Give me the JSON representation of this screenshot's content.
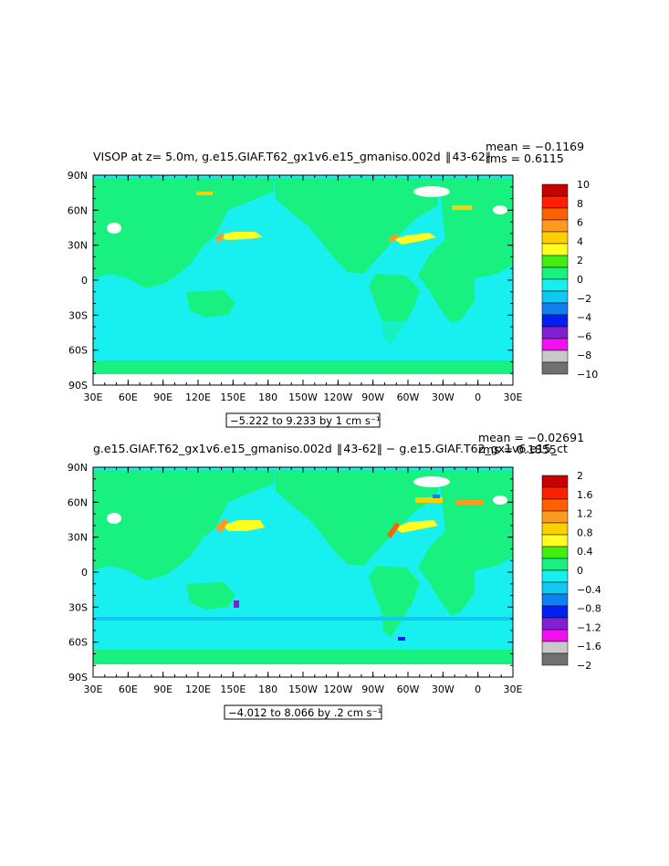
{
  "panels": [
    {
      "title": "VISOP at z=    5.0m, g.e15.GIAF.T62_gx1v6.e15_gmaniso.002d  ‖ 43-62‖",
      "mean_label": "mean = −0.1169",
      "rms_label": "rms = 0.6115",
      "range_label": "−5.222 to 9.233 by 1 cm s⁻¹",
      "colorbar": {
        "labels": [
          "10",
          "8",
          "6",
          "4",
          "2",
          "0",
          "−2",
          "−4",
          "−6",
          "−8",
          "−10"
        ],
        "colors": [
          "#c80000",
          "#ff2000",
          "#ff6000",
          "#ff9a20",
          "#ffd000",
          "#ffff20",
          "#40ee10",
          "#18f080",
          "#18f0f0",
          "#10c8f0",
          "#1080f0",
          "#0020f0",
          "#8020d0",
          "#f010f0",
          "#c8c8c8",
          "#707070"
        ]
      }
    },
    {
      "title": "g.e15.GIAF.T62_gx1v6.e15_gmaniso.002d  ‖ 43-62‖ − g.e15.GIAF.T62_gx1v6.e15_ct",
      "mean_label": "mean = −0.02691",
      "rms_label": "rms = 0.1855",
      "range_label": "−4.012 to 8.066 by .2 cm s⁻¹",
      "colorbar": {
        "labels": [
          "2",
          "1.6",
          "1.2",
          "0.8",
          "0.4",
          "0",
          "−0.4",
          "−0.8",
          "−1.2",
          "−1.6",
          "−2"
        ],
        "colors": [
          "#c80000",
          "#ff2000",
          "#ff6000",
          "#ff9a20",
          "#ffd000",
          "#ffff20",
          "#40ee10",
          "#18f080",
          "#18f0f0",
          "#10c8f0",
          "#1080f0",
          "#0020f0",
          "#8020d0",
          "#f010f0",
          "#c8c8c8",
          "#707070"
        ]
      }
    }
  ],
  "axes": {
    "lat_labels": [
      "90N",
      "60N",
      "30N",
      "0",
      "30S",
      "60S",
      "90S"
    ],
    "lon_labels": [
      "30E",
      "60E",
      "90E",
      "120E",
      "150E",
      "180",
      "150W",
      "120W",
      "90W",
      "60W",
      "30W",
      "0",
      "30E"
    ]
  },
  "map_colors": {
    "land": "#18f080",
    "ocean": "#18f0f0",
    "positive": "#ffff20",
    "strong": "#ff9a20",
    "negative": "#1080f0",
    "missing": "#ffffff"
  }
}
